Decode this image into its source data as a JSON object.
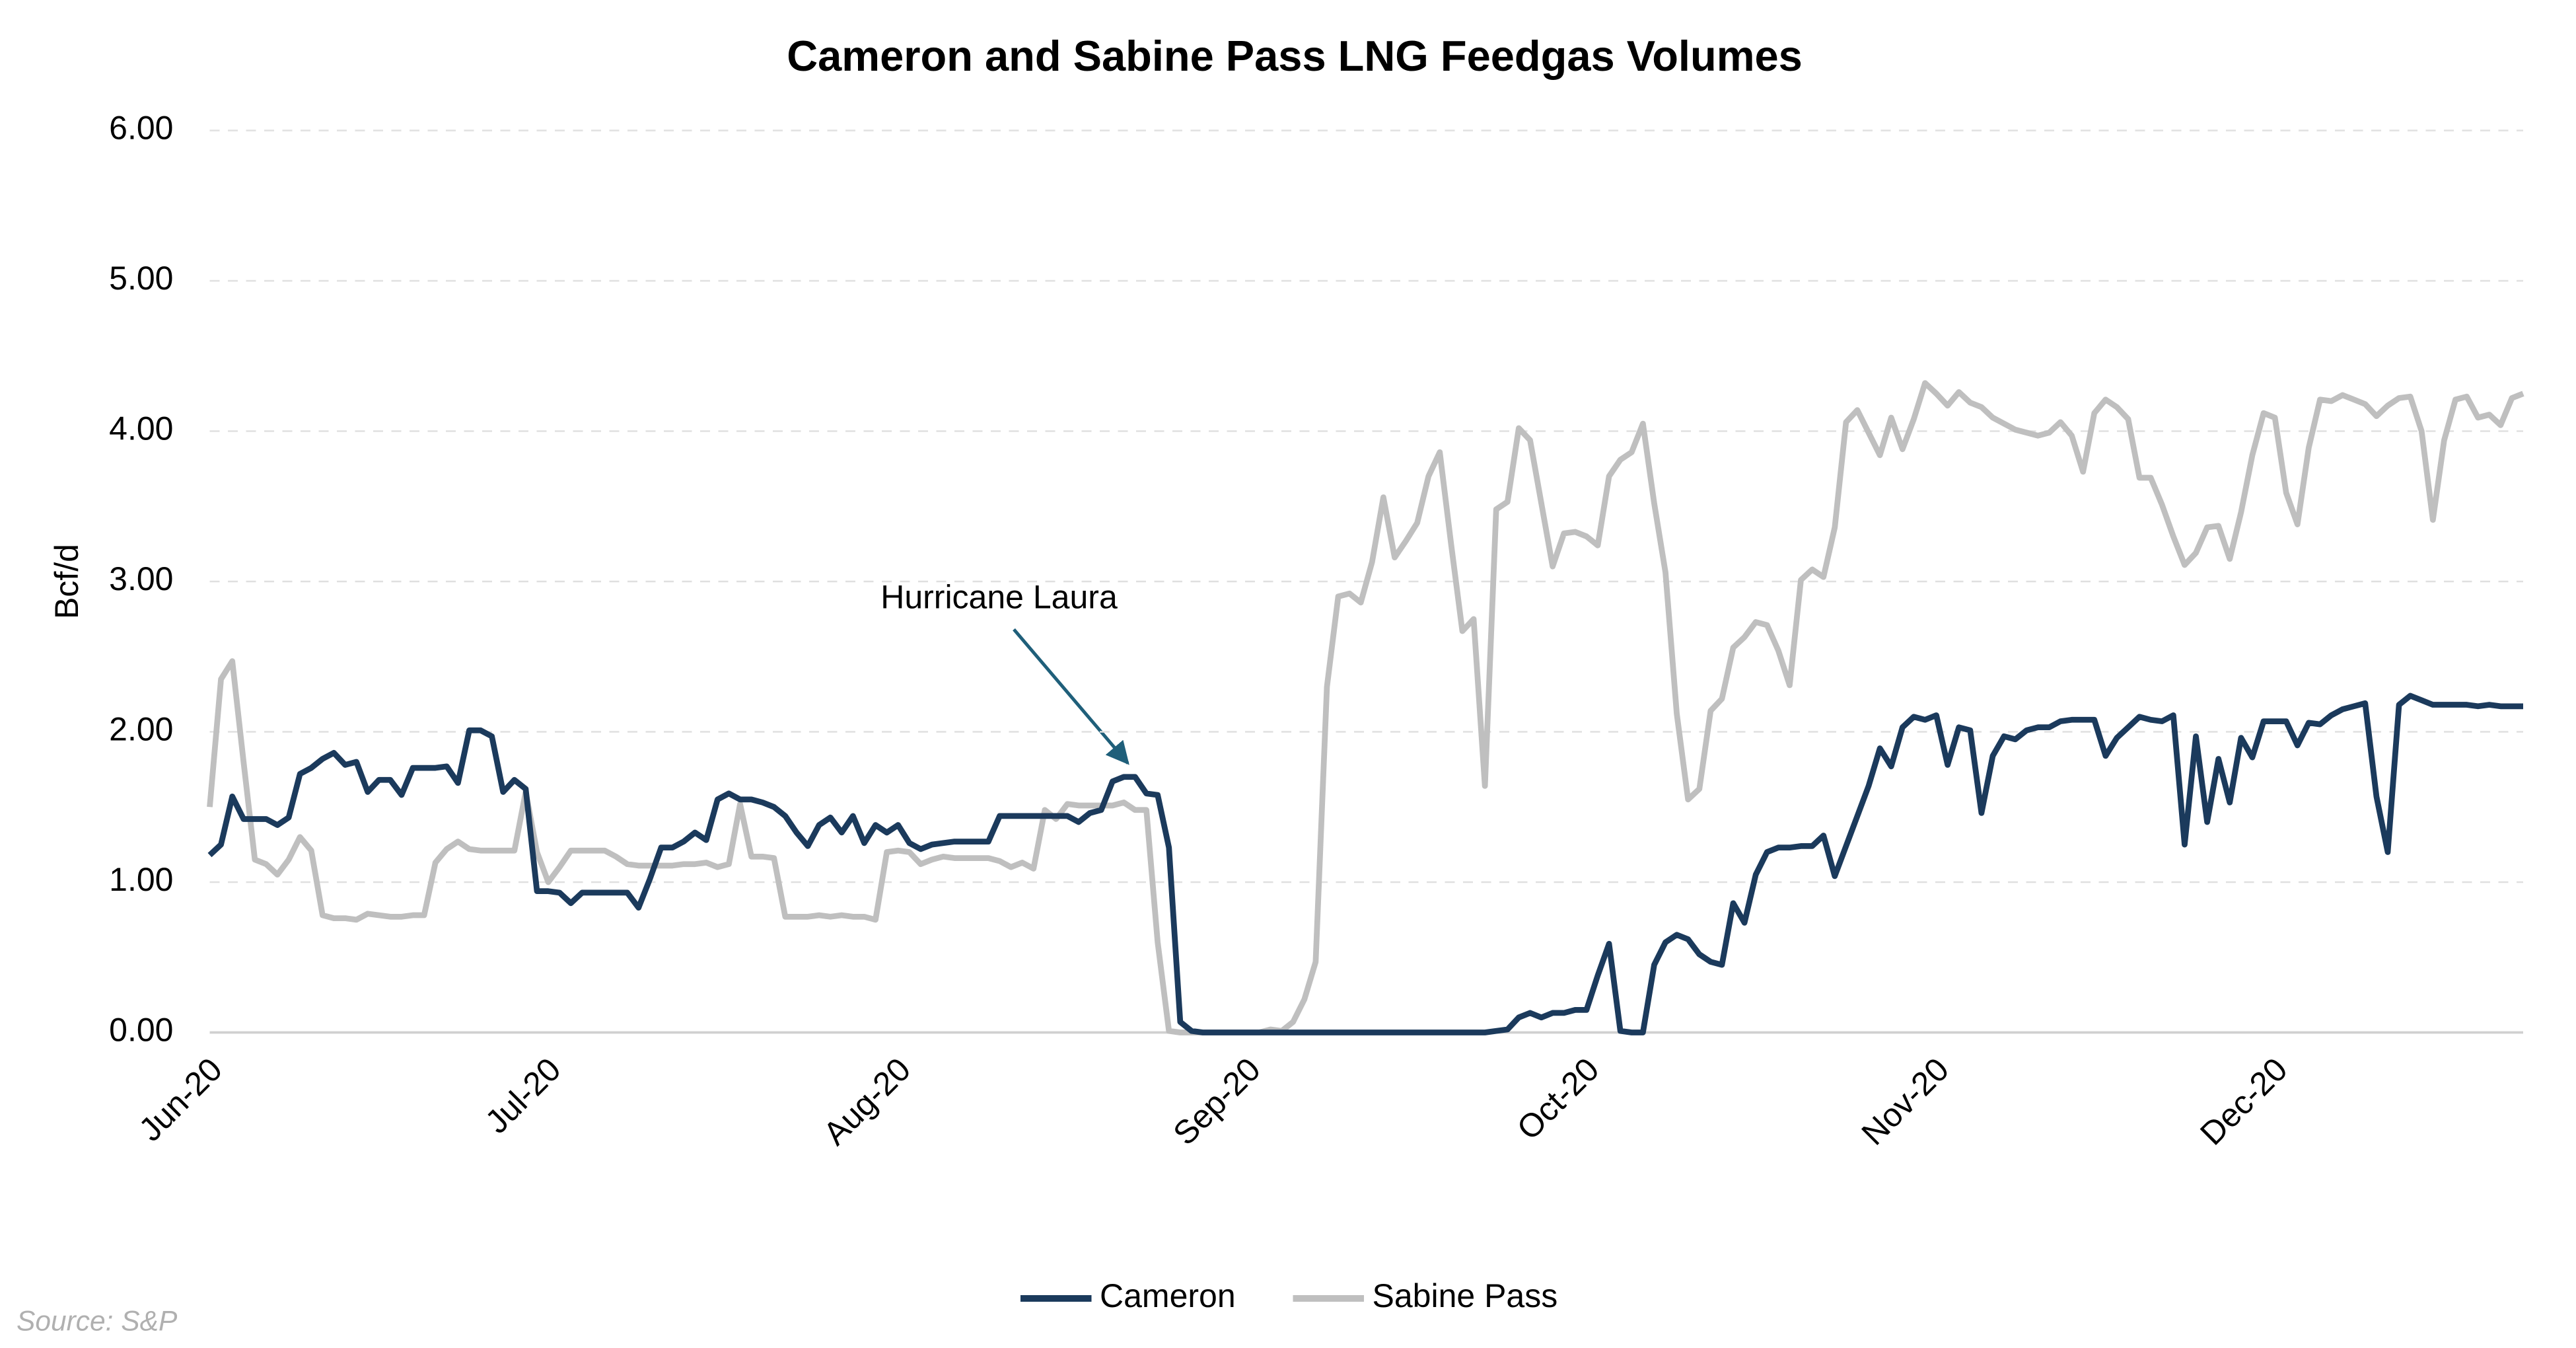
{
  "chart_data": {
    "type": "line",
    "title": "Cameron and Sabine Pass LNG Feedgas Volumes",
    "y_label": "Bcf/d",
    "annotation": "Hurricane Laura",
    "source": "Source: S&P",
    "grid": true,
    "legend": "bottom",
    "ylim": [
      0,
      6
    ],
    "yticks": [
      {
        "value": 0,
        "label": "0.00"
      },
      {
        "value": 1,
        "label": "1.00"
      },
      {
        "value": 2,
        "label": "2.00"
      },
      {
        "value": 3,
        "label": "3.00"
      },
      {
        "value": 4,
        "label": "4.00"
      },
      {
        "value": 5,
        "label": "5.00"
      },
      {
        "value": 6,
        "label": "6.00"
      }
    ],
    "categories": [
      "Jun-20",
      null,
      null,
      null,
      null,
      null,
      null,
      null,
      null,
      null,
      null,
      null,
      null,
      null,
      null,
      null,
      null,
      null,
      null,
      null,
      null,
      null,
      null,
      null,
      null,
      null,
      null,
      null,
      null,
      null,
      "Jul-20",
      null,
      null,
      null,
      null,
      null,
      null,
      null,
      null,
      null,
      null,
      null,
      null,
      null,
      null,
      null,
      null,
      null,
      null,
      null,
      null,
      null,
      null,
      null,
      null,
      null,
      null,
      null,
      null,
      null,
      null,
      "Aug-20",
      null,
      null,
      null,
      null,
      null,
      null,
      null,
      null,
      null,
      null,
      null,
      null,
      null,
      null,
      null,
      null,
      null,
      null,
      null,
      null,
      null,
      null,
      null,
      null,
      null,
      null,
      null,
      null,
      null,
      null,
      "Sep-20",
      null,
      null,
      null,
      null,
      null,
      null,
      null,
      null,
      null,
      null,
      null,
      null,
      null,
      null,
      null,
      null,
      null,
      null,
      null,
      null,
      null,
      null,
      null,
      null,
      null,
      null,
      null,
      null,
      null,
      "Oct-20",
      null,
      null,
      null,
      null,
      null,
      null,
      null,
      null,
      null,
      null,
      null,
      null,
      null,
      null,
      null,
      null,
      null,
      null,
      null,
      null,
      null,
      null,
      null,
      null,
      null,
      null,
      null,
      null,
      null,
      null,
      "Nov-20",
      null,
      null,
      null,
      null,
      null,
      null,
      null,
      null,
      null,
      null,
      null,
      null,
      null,
      null,
      null,
      null,
      null,
      null,
      null,
      null,
      null,
      null,
      null,
      null,
      null,
      null,
      null,
      null,
      null,
      "Dec-20",
      null,
      null,
      null,
      null,
      null,
      null,
      null,
      null,
      null,
      null,
      null,
      null,
      null,
      null,
      null,
      null,
      null,
      null,
      null,
      null,
      null,
      null
    ],
    "series": [
      {
        "name": "Cameron",
        "color": "#1b3a5c",
        "values": [
          1.18,
          1.25,
          1.57,
          1.42,
          1.42,
          1.42,
          1.38,
          1.43,
          1.72,
          1.76,
          1.82,
          1.86,
          1.78,
          1.8,
          1.6,
          1.68,
          1.68,
          1.58,
          1.76,
          1.76,
          1.76,
          1.77,
          1.66,
          2.01,
          2.01,
          1.97,
          1.6,
          1.68,
          1.62,
          0.94,
          0.94,
          0.93,
          0.86,
          0.93,
          0.93,
          0.93,
          0.93,
          0.93,
          0.83,
          1.02,
          1.23,
          1.23,
          1.27,
          1.33,
          1.28,
          1.55,
          1.59,
          1.55,
          1.55,
          1.53,
          1.5,
          1.44,
          1.33,
          1.24,
          1.38,
          1.43,
          1.33,
          1.44,
          1.26,
          1.38,
          1.33,
          1.38,
          1.26,
          1.22,
          1.25,
          1.26,
          1.27,
          1.27,
          1.27,
          1.27,
          1.44,
          1.44,
          1.44,
          1.44,
          1.44,
          1.44,
          1.44,
          1.4,
          1.46,
          1.48,
          1.67,
          1.7,
          1.7,
          1.59,
          1.58,
          1.23,
          0.07,
          0.01,
          0,
          0,
          0,
          0,
          0,
          0,
          0,
          0,
          0,
          0,
          0,
          0,
          0,
          0,
          0,
          0,
          0,
          0,
          0,
          0,
          0,
          0,
          0,
          0,
          0,
          0,
          0.01,
          0.02,
          0.1,
          0.13,
          0.1,
          0.13,
          0.13,
          0.15,
          0.15,
          0.38,
          0.59,
          0.01,
          0,
          0,
          0.45,
          0.6,
          0.65,
          0.62,
          0.52,
          0.47,
          0.45,
          0.86,
          0.73,
          1.05,
          1.2,
          1.23,
          1.23,
          1.24,
          1.24,
          1.31,
          1.04,
          1.24,
          1.44,
          1.64,
          1.89,
          1.77,
          2.03,
          2.1,
          2.08,
          2.11,
          1.78,
          2.03,
          2.01,
          1.46,
          1.84,
          1.97,
          1.95,
          2.01,
          2.03,
          2.03,
          2.07,
          2.08,
          2.08,
          2.08,
          1.84,
          1.96,
          2.03,
          2.1,
          2.08,
          2.07,
          2.11,
          1.25,
          1.97,
          1.4,
          1.82,
          1.53,
          1.96,
          1.83,
          2.07,
          2.07,
          2.07,
          1.91,
          2.06,
          2.05,
          2.11,
          2.15,
          2.17,
          2.19,
          1.57,
          1.2,
          2.18,
          2.24,
          2.21,
          2.18,
          2.18,
          2.18,
          2.18,
          2.17,
          2.18,
          2.17,
          2.17,
          2.17
        ]
      },
      {
        "name": "Sabine Pass",
        "color": "#bfbfbf",
        "values": [
          1.5,
          2.35,
          2.47,
          1.8,
          1.15,
          1.12,
          1.05,
          1.15,
          1.3,
          1.21,
          0.78,
          0.76,
          0.76,
          0.75,
          0.79,
          0.78,
          0.77,
          0.77,
          0.78,
          0.78,
          1.13,
          1.22,
          1.27,
          1.22,
          1.21,
          1.21,
          1.21,
          1.21,
          1.6,
          1.2,
          1.0,
          1.1,
          1.21,
          1.21,
          1.21,
          1.21,
          1.17,
          1.12,
          1.11,
          1.11,
          1.11,
          1.11,
          1.12,
          1.12,
          1.13,
          1.1,
          1.12,
          1.52,
          1.17,
          1.17,
          1.16,
          0.77,
          0.77,
          0.77,
          0.78,
          0.77,
          0.78,
          0.77,
          0.77,
          0.75,
          1.2,
          1.21,
          1.2,
          1.12,
          1.15,
          1.17,
          1.16,
          1.16,
          1.16,
          1.16,
          1.14,
          1.1,
          1.13,
          1.09,
          1.48,
          1.42,
          1.52,
          1.51,
          1.51,
          1.51,
          1.51,
          1.53,
          1.48,
          1.48,
          0.6,
          0.01,
          0,
          0,
          0,
          0,
          0,
          0,
          0,
          0,
          0.02,
          0.01,
          0.07,
          0.22,
          0.47,
          2.3,
          2.9,
          2.92,
          2.86,
          3.13,
          3.56,
          3.16,
          3.27,
          3.39,
          3.7,
          3.86,
          3.25,
          2.67,
          2.75,
          1.64,
          3.48,
          3.53,
          4.02,
          3.94,
          3.52,
          3.1,
          3.32,
          3.33,
          3.3,
          3.24,
          3.7,
          3.81,
          3.86,
          4.05,
          3.52,
          3.06,
          2.12,
          1.55,
          1.62,
          2.14,
          2.22,
          2.56,
          2.63,
          2.73,
          2.71,
          2.54,
          2.31,
          3.01,
          3.08,
          3.03,
          3.36,
          4.06,
          4.14,
          3.99,
          3.84,
          4.09,
          3.88,
          4.08,
          4.32,
          4.25,
          4.17,
          4.26,
          4.19,
          4.16,
          4.09,
          4.05,
          4.01,
          3.99,
          3.97,
          3.99,
          4.06,
          3.97,
          3.73,
          4.12,
          4.21,
          4.16,
          4.08,
          3.69,
          3.69,
          3.51,
          3.3,
          3.11,
          3.19,
          3.36,
          3.37,
          3.15,
          3.46,
          3.84,
          4.12,
          4.09,
          3.59,
          3.38,
          3.89,
          4.21,
          4.2,
          4.24,
          4.21,
          4.18,
          4.1,
          4.17,
          4.22,
          4.23,
          4.0,
          3.41,
          3.94,
          4.21,
          4.23,
          4.09,
          4.11,
          4.04,
          4.22,
          4.25
        ]
      }
    ]
  }
}
